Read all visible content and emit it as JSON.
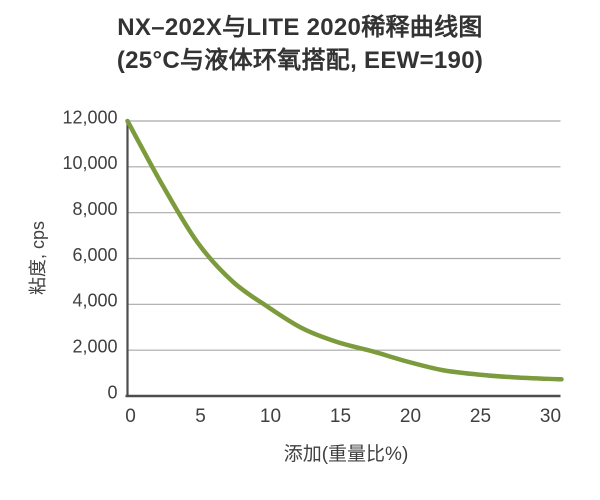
{
  "title": {
    "line1": "NX–202X与LITE 2020稀释曲线图",
    "line2": "(25°C与液体环氧搭配, EEW=190)"
  },
  "chart_data": {
    "type": "line",
    "title": "NX–202X与LITE 2020稀释曲线图 (25°C与液体环氧搭配, EEW=190)",
    "xlabel": "添加(重量比%)",
    "ylabel": "粘度, cps",
    "x": [
      0,
      2.5,
      5,
      7.5,
      10,
      12.5,
      15,
      17.5,
      20,
      22.5,
      25,
      27.5,
      30,
      31
    ],
    "values": [
      12000,
      9200,
      6700,
      5000,
      3900,
      2950,
      2350,
      1950,
      1500,
      1130,
      940,
      820,
      750,
      730
    ],
    "xlim": [
      0,
      31
    ],
    "ylim": [
      0,
      12000
    ],
    "x_ticks": [
      0,
      5,
      10,
      15,
      20,
      25,
      30
    ],
    "x_tick_labels": [
      "0",
      "5",
      "10",
      "15",
      "20",
      "25",
      "30"
    ],
    "y_ticks": [
      0,
      2000,
      4000,
      6000,
      8000,
      10000,
      12000
    ],
    "y_tick_labels": [
      "0",
      "2,000",
      "4,000",
      "6,000",
      "8,000",
      "10,000",
      "12,000"
    ],
    "grid": "horizontal",
    "legend": "none",
    "colors": {
      "line": "#7C9B3D",
      "grid": "#A9A9A9",
      "axis": "#4D4D4D",
      "tick_text": "#404040",
      "title_text": "#333333"
    }
  }
}
